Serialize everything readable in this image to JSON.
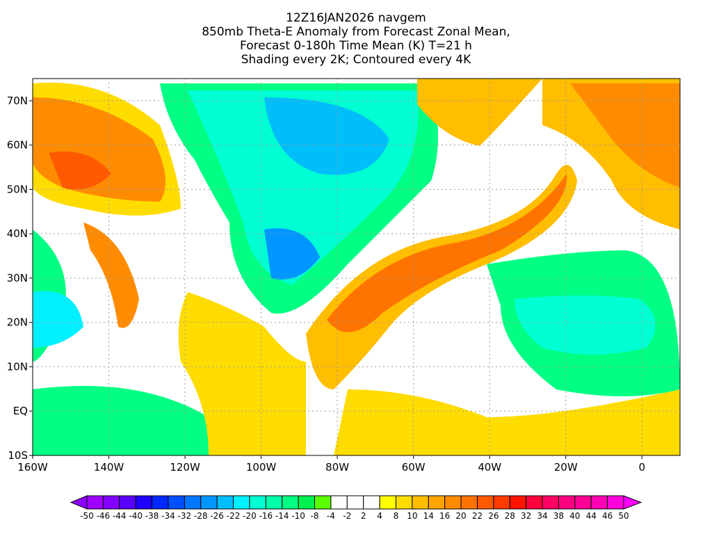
{
  "title_lines": [
    "12Z16JAN2026 navgem",
    "850mb Theta-E Anomaly from Forecast Zonal Mean,",
    "Forecast 0-180h Time Mean (K) T=21 h",
    "Shading every 2K; Contoured every 4K"
  ],
  "lat_labels": [
    "70N",
    "60N",
    "50N",
    "40N",
    "30N",
    "20N",
    "10N",
    "EQ",
    "10S"
  ],
  "lat_values": [
    70,
    60,
    50,
    40,
    30,
    20,
    10,
    0,
    -10
  ],
  "lon_labels": [
    "160W",
    "140W",
    "120W",
    "100W",
    "80W",
    "60W",
    "40W",
    "20W",
    "0"
  ],
  "lon_values": [
    -160,
    -140,
    -120,
    -100,
    -80,
    -60,
    -40,
    -20,
    0
  ],
  "map_extent": {
    "lon": [
      -160,
      10
    ],
    "lat": [
      -10,
      75
    ]
  },
  "colorbar": {
    "labels": [
      "-50",
      "-46",
      "-44",
      "-40",
      "-38",
      "-34",
      "-32",
      "-28",
      "-26",
      "-22",
      "-20",
      "-16",
      "-14",
      "-10",
      "-8",
      "-4",
      "-2",
      "2",
      "4",
      "8",
      "10",
      "14",
      "16",
      "20",
      "22",
      "26",
      "28",
      "32",
      "34",
      "38",
      "40",
      "44",
      "46",
      "50"
    ],
    "colors": [
      "#a000ff",
      "#8200ff",
      "#5a00ff",
      "#1e00ff",
      "#0028ff",
      "#0050ff",
      "#0078ff",
      "#0096ff",
      "#00befa",
      "#00f0ff",
      "#00ffd2",
      "#00ffaa",
      "#00ff82",
      "#00f050",
      "#5aff00",
      "#ffffff",
      "#ffffff",
      "#ffffff",
      "#ffff00",
      "#ffdc00",
      "#ffbe00",
      "#ffa500",
      "#ff8c00",
      "#ff7300",
      "#ff5a00",
      "#ff3c00",
      "#ff1400",
      "#ff003c",
      "#ff0064",
      "#ff0082",
      "#ff0096",
      "#ff00b4",
      "#ff00dc"
    ],
    "low_arrow_color": "#8c00ff",
    "high_arrow_color": "#ff00ff"
  }
}
